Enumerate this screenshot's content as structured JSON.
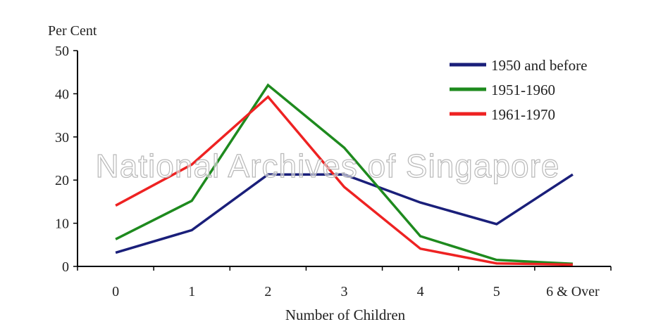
{
  "watermark": "National Archives of Singapore",
  "chart_data": {
    "type": "line",
    "ylabel": "Per Cent",
    "xlabel": "Number of Children",
    "categories": [
      "0",
      "1",
      "2",
      "3",
      "4",
      "5",
      "6 & Over"
    ],
    "ylim": [
      0,
      50
    ],
    "yticks": [
      "0",
      "10",
      "20",
      "30",
      "40",
      "50"
    ],
    "grid": false,
    "legend_position": "top-right",
    "series": [
      {
        "name": "1950 and before",
        "color": "#1a1f7a",
        "values": [
          3.2,
          8.4,
          21.3,
          21.3,
          14.8,
          9.8,
          21.3
        ]
      },
      {
        "name": "1951-1960",
        "color": "#1e8a1e",
        "values": [
          6.3,
          15.2,
          42.0,
          27.5,
          7.0,
          1.5,
          0.6
        ]
      },
      {
        "name": "1961-1970",
        "color": "#ee2222",
        "values": [
          14.1,
          23.6,
          39.3,
          18.4,
          4.1,
          0.7,
          0.4
        ]
      }
    ]
  }
}
